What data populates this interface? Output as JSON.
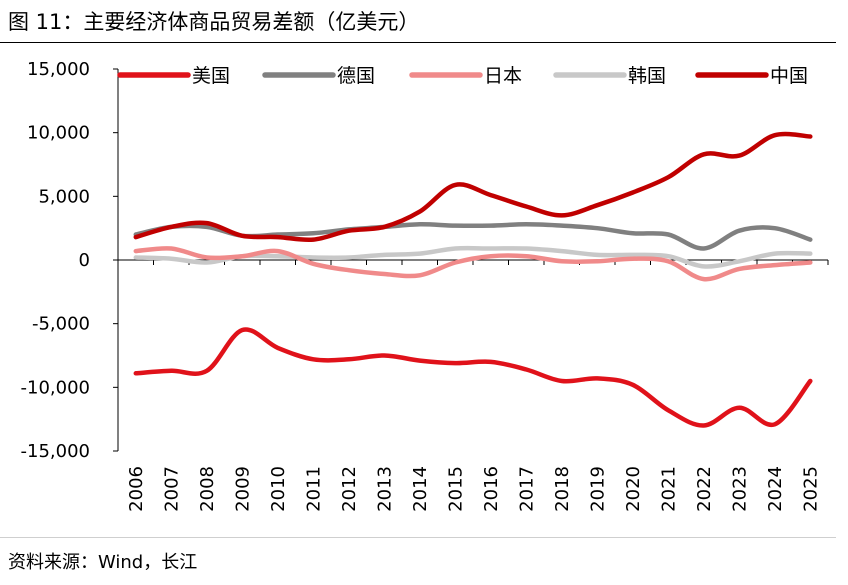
{
  "figure": {
    "title": "图 11：主要经济体商品贸易差额（亿美元）",
    "source": "资料来源：Wind，长江"
  },
  "chart_data": {
    "type": "line",
    "title": "主要经济体商品贸易差额（亿美元）",
    "xlabel": "",
    "ylabel": "",
    "ylim": [
      -15000,
      15000
    ],
    "yticks": [
      -15000,
      -10000,
      -5000,
      0,
      5000,
      10000,
      15000
    ],
    "ytick_labels": [
      "-15,000",
      "-10,000",
      "-5,000",
      "0",
      "5,000",
      "10,000",
      "15,000"
    ],
    "categories": [
      "2006",
      "2007",
      "2008",
      "2009",
      "2010",
      "2011",
      "2012",
      "2013",
      "2014",
      "2015",
      "2016",
      "2017",
      "2018",
      "2019",
      "2020",
      "2021",
      "2022",
      "2023",
      "2024",
      "2025"
    ],
    "legend_position": "top",
    "series": [
      {
        "name": "美国",
        "color": "#e0121a",
        "values": [
          -8900,
          -8700,
          -8700,
          -5500,
          -6900,
          -7800,
          -7800,
          -7500,
          -7900,
          -8100,
          -8000,
          -8600,
          -9500,
          -9300,
          -9800,
          -11800,
          -13000,
          -11600,
          -12900,
          -9500
        ]
      },
      {
        "name": "德国",
        "color": "#808080",
        "values": [
          2000,
          2600,
          2600,
          1900,
          2000,
          2100,
          2400,
          2600,
          2800,
          2700,
          2700,
          2800,
          2700,
          2500,
          2100,
          2000,
          900,
          2300,
          2500,
          1600
        ]
      },
      {
        "name": "日本",
        "color": "#f08a8a",
        "values": [
          700,
          900,
          200,
          300,
          700,
          -300,
          -800,
          -1100,
          -1200,
          -200,
          300,
          300,
          -100,
          -100,
          100,
          -100,
          -1500,
          -700,
          -400,
          -200
        ]
      },
      {
        "name": "韩国",
        "color": "#c8c8c8",
        "values": [
          200,
          100,
          -200,
          300,
          300,
          200,
          200,
          400,
          500,
          900,
          900,
          900,
          700,
          400,
          400,
          300,
          -500,
          -100,
          500,
          500
        ]
      },
      {
        "name": "中国",
        "color": "#c00000",
        "values": [
          1800,
          2600,
          2900,
          1900,
          1800,
          1600,
          2300,
          2600,
          3800,
          5900,
          5100,
          4200,
          3500,
          4300,
          5300,
          6500,
          8300,
          8200,
          9800,
          9700
        ]
      }
    ]
  }
}
